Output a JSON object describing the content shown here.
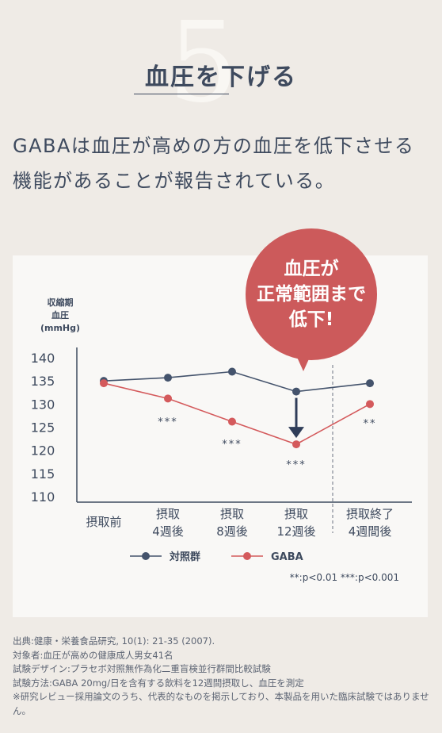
{
  "header": {
    "number": "5",
    "title": "血圧を下げる"
  },
  "lead": "GABAは血圧が高めの方の血圧を低下させる機能があることが報告されている。",
  "callout": {
    "lines": [
      "血圧が",
      "正常範囲まで",
      "低下!"
    ]
  },
  "colors": {
    "control": "#44536c",
    "gaba": "#d45a5c",
    "bubble": "#cc5a5b",
    "background": "#efebe6"
  },
  "chart_data": {
    "type": "line",
    "ylabel": [
      "収縮期",
      "血圧",
      "(mmHg)"
    ],
    "ylim": [
      110,
      140
    ],
    "yticks": [
      140,
      135,
      130,
      125,
      120,
      115,
      110
    ],
    "categories": [
      [
        "摂取前"
      ],
      [
        "摂取",
        "4週後"
      ],
      [
        "摂取",
        "8週後"
      ],
      [
        "摂取",
        "12週後"
      ],
      [
        "摂取終了",
        "4週間後"
      ]
    ],
    "series": [
      {
        "name": "対照群",
        "color": "#44536c",
        "values": [
          135,
          135.7,
          137,
          132.7,
          134.5
        ]
      },
      {
        "name": "GABA",
        "color": "#d45a5c",
        "values": [
          134.5,
          131.2,
          126.2,
          121.3,
          130
        ]
      }
    ],
    "significance": [
      "",
      "***",
      "***",
      "***",
      "**"
    ],
    "legend_position": "bottom",
    "footnote": "**:p<0.01 ***:p<0.001"
  },
  "notes": [
    "出典:健康・栄養食品研究, 10(1): 21-35 (2007).",
    "対象者:血圧が高めの健康成人男女41名",
    "試験デザイン:プラセボ対照無作為化二重盲検並行群間比較試験",
    "試験方法:GABA 20mg/日を含有する飲料を12週間摂取し、血圧を測定",
    "※研究レビュー採用論文のうち、代表的なものを掲示しており、本製品を用いた臨床試験ではありません。"
  ]
}
